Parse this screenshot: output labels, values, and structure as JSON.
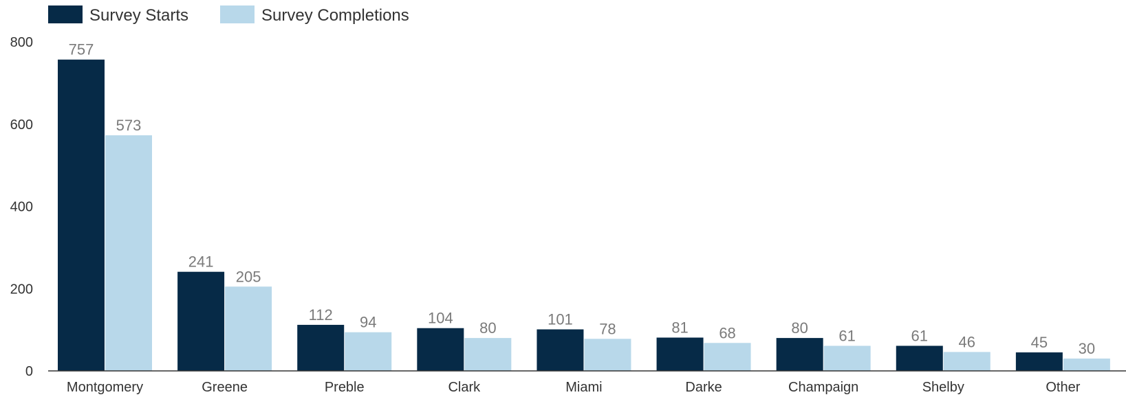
{
  "chart_data": {
    "type": "bar",
    "categories": [
      "Montgomery",
      "Greene",
      "Preble",
      "Clark",
      "Miami",
      "Darke",
      "Champaign",
      "Shelby",
      "Other"
    ],
    "series": [
      {
        "name": "Survey Starts",
        "values": [
          757,
          241,
          112,
          104,
          101,
          81,
          80,
          61,
          45
        ],
        "color": "#062a47"
      },
      {
        "name": "Survey Completions",
        "values": [
          573,
          205,
          94,
          80,
          78,
          68,
          61,
          46,
          30
        ],
        "color": "#b8d8ea"
      }
    ],
    "ylim": [
      0,
      800
    ],
    "yticks": [
      "0",
      "200",
      "400",
      "600",
      "800"
    ],
    "legend_position": "top-left",
    "grid": false
  }
}
